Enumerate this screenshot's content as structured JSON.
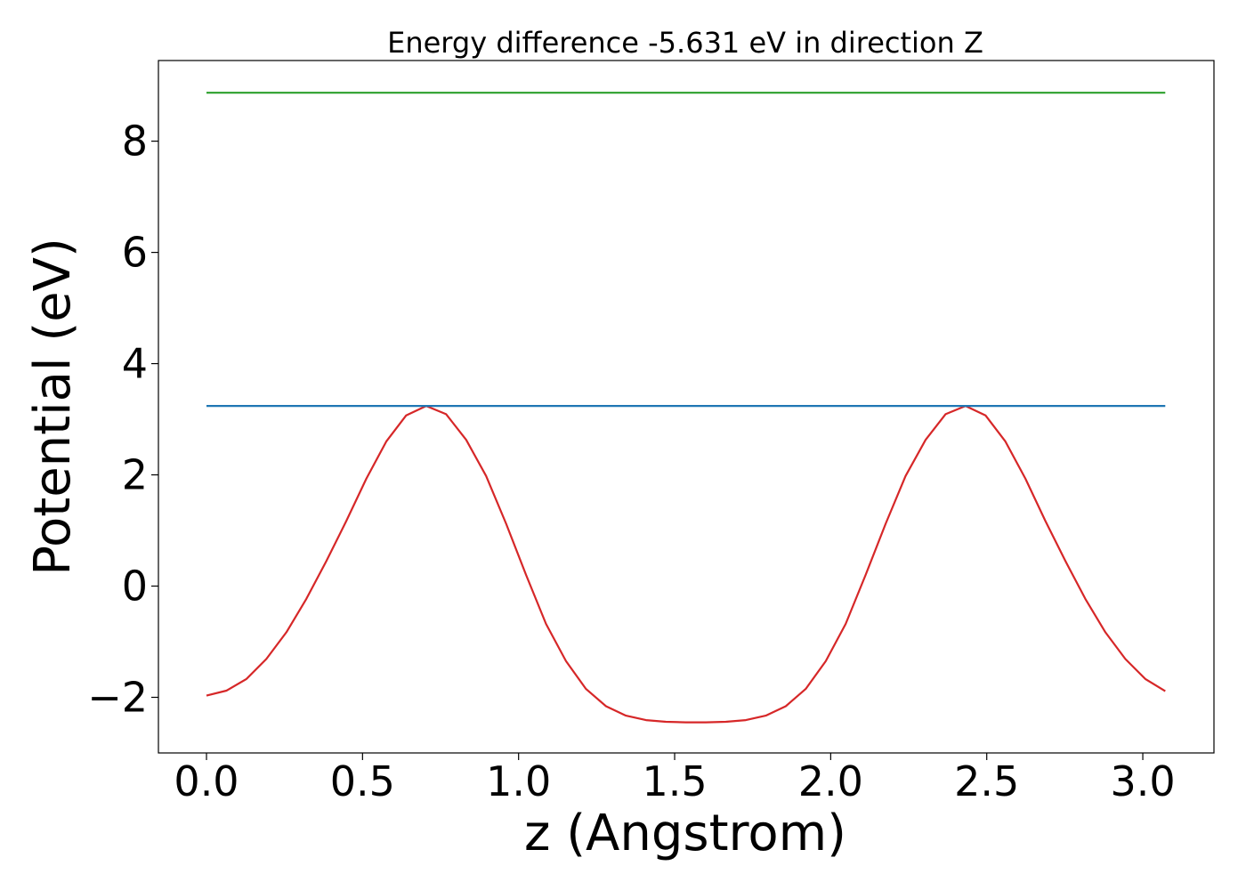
{
  "chart_data": {
    "type": "line",
    "title": "Energy difference -5.631 eV in direction Z",
    "xlabel": "z (Angstrom)",
    "ylabel": "Potential (eV)",
    "xlim": [
      -0.154,
      3.228
    ],
    "ylim": [
      -3.0,
      9.45
    ],
    "xticks": [
      0.0,
      0.5,
      1.0,
      1.5,
      2.0,
      2.5,
      3.0
    ],
    "xtick_labels": [
      "0.0",
      "0.5",
      "1.0",
      "1.5",
      "2.0",
      "2.5",
      "3.0"
    ],
    "yticks": [
      -2,
      0,
      2,
      4,
      6,
      8
    ],
    "ytick_labels": [
      "−2",
      "0",
      "2",
      "4",
      "6",
      "8"
    ],
    "grid": false,
    "series": [
      {
        "color": "#d62728",
        "x": [
          0.0,
          0.064,
          0.128,
          0.192,
          0.256,
          0.32,
          0.384,
          0.448,
          0.512,
          0.576,
          0.64,
          0.704,
          0.768,
          0.832,
          0.896,
          0.96,
          1.024,
          1.088,
          1.152,
          1.216,
          1.28,
          1.344,
          1.408,
          1.472,
          1.536,
          1.6,
          1.664,
          1.728,
          1.792,
          1.856,
          1.92,
          1.984,
          2.048,
          2.112,
          2.176,
          2.24,
          2.304,
          2.368,
          2.432,
          2.496,
          2.56,
          2.624,
          2.688,
          2.752,
          2.816,
          2.88,
          2.944,
          3.008,
          3.072
        ],
        "values": [
          -1.97,
          -1.88,
          -1.67,
          -1.31,
          -0.83,
          -0.23,
          0.45,
          1.17,
          1.93,
          2.6,
          3.07,
          3.24,
          3.09,
          2.63,
          1.98,
          1.12,
          0.2,
          -0.68,
          -1.35,
          -1.85,
          -2.16,
          -2.33,
          -2.41,
          -2.44,
          -2.45,
          -2.45,
          -2.44,
          -2.41,
          -2.33,
          -2.16,
          -1.85,
          -1.35,
          -0.68,
          0.2,
          1.12,
          1.98,
          2.63,
          3.09,
          3.24,
          3.07,
          2.6,
          1.93,
          1.17,
          0.45,
          -0.23,
          -0.83,
          -1.31,
          -1.67,
          -1.89
        ]
      },
      {
        "color": "#1f77b4",
        "x": [
          0.0,
          3.072
        ],
        "values": [
          3.24,
          3.24
        ]
      },
      {
        "color": "#2ca02c",
        "x": [
          0.0,
          3.072
        ],
        "values": [
          8.87,
          8.87
        ]
      }
    ],
    "colors": {
      "axes": "#000000",
      "background": "#ffffff"
    }
  }
}
